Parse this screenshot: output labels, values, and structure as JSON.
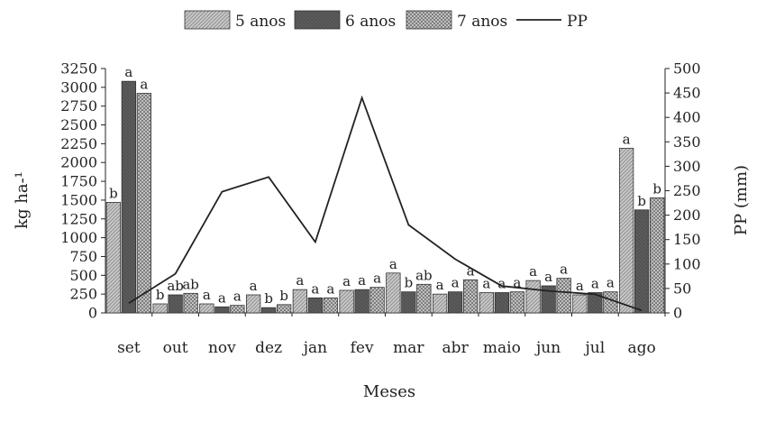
{
  "chart_data": {
    "type": "bar",
    "title": "",
    "xlabel": "Meses",
    "ylabel_left": "kg ha-¹",
    "ylabel_right": "PP (mm)",
    "categories": [
      "set",
      "out",
      "nov",
      "dez",
      "jan",
      "fev",
      "mar",
      "abr",
      "maio",
      "jun",
      "jul",
      "ago"
    ],
    "ylim_left": [
      0,
      3250
    ],
    "yticks_left": [
      "0",
      "250",
      "500",
      "750",
      "1000",
      "1250",
      "1500",
      "1750",
      "2000",
      "2250",
      "2500",
      "2750",
      "3000",
      "3250"
    ],
    "ylim_right": [
      0,
      500
    ],
    "yticks_right": [
      "0",
      "50",
      "100",
      "150",
      "200",
      "250",
      "300",
      "350",
      "400",
      "450",
      "500"
    ],
    "legend_position": "top",
    "grid": false,
    "series": [
      {
        "name": "5 anos",
        "kind": "bar",
        "pattern": "light-hatch",
        "values": [
          1470,
          120,
          120,
          240,
          310,
          300,
          530,
          250,
          270,
          430,
          240,
          2190
        ],
        "labels": [
          "b",
          "b",
          "a",
          "a",
          "a",
          "a",
          "a",
          "a",
          "a",
          "a",
          "a",
          "a"
        ]
      },
      {
        "name": "6 anos",
        "kind": "bar",
        "pattern": "dark",
        "values": [
          3080,
          240,
          80,
          70,
          200,
          310,
          280,
          280,
          270,
          360,
          270,
          1370
        ],
        "labels": [
          "a",
          "ab",
          "a",
          "b",
          "a",
          "a",
          "b",
          "a",
          "a",
          "a",
          "a",
          "b"
        ]
      },
      {
        "name": "7 anos",
        "kind": "bar",
        "pattern": "crosshatch",
        "values": [
          2920,
          260,
          100,
          110,
          200,
          340,
          380,
          440,
          280,
          460,
          280,
          1530
        ],
        "labels": [
          "a",
          "ab",
          "a",
          "b",
          "a",
          "a",
          "ab",
          "a",
          "a",
          "a",
          "a",
          "b"
        ]
      },
      {
        "name": "PP",
        "kind": "line",
        "axis": "right",
        "x": [
          "set",
          "out",
          "nov",
          "dez",
          "jan",
          "fev",
          "mar",
          "abr",
          "maio",
          "jun",
          "jul",
          "ago"
        ],
        "values": [
          20,
          80,
          248,
          278,
          145,
          440,
          180,
          110,
          55,
          45,
          38,
          5
        ]
      }
    ]
  }
}
